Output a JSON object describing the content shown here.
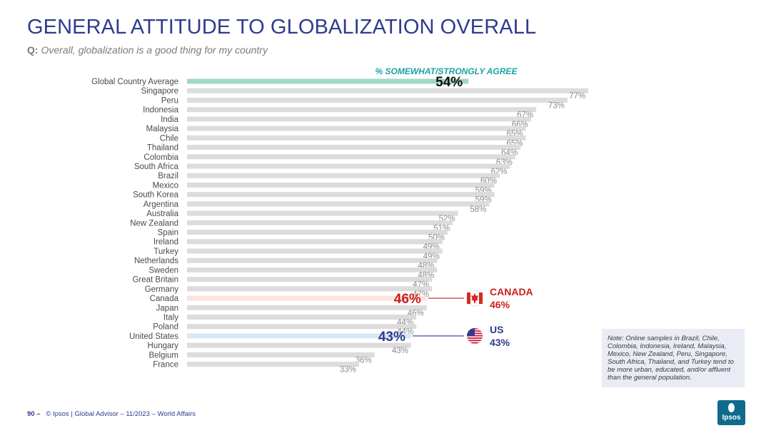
{
  "title": "GENERAL ATTITUDE TO GLOBALIZATION OVERALL",
  "question": {
    "prefix": "Q:",
    "text": "Overall, globalization is a good thing for my country"
  },
  "chart_data": {
    "type": "bar",
    "orientation": "horizontal",
    "series_label": "% SOMEWHAT/STRONGLY AGREE",
    "xlim": [
      0,
      100
    ],
    "unit": "%",
    "categories": [
      "Global Country Average",
      "Singapore",
      "Peru",
      "Indonesia",
      "India",
      "Malaysia",
      "Chile",
      "Thailand",
      "Colombia",
      "South Africa",
      "Brazil",
      "Mexico",
      "South Korea",
      "Argentina",
      "Australia",
      "New Zealand",
      "Spain",
      "Ireland",
      "Turkey",
      "Netherlands",
      "Sweden",
      "Great Britain",
      "Germany",
      "Canada",
      "Japan",
      "Italy",
      "Poland",
      "United States",
      "Hungary",
      "Belgium",
      "France"
    ],
    "values": [
      54,
      77,
      73,
      67,
      66,
      65,
      65,
      64,
      63,
      62,
      60,
      59,
      59,
      58,
      52,
      51,
      50,
      49,
      49,
      48,
      48,
      47,
      47,
      46,
      46,
      44,
      44,
      43,
      43,
      36,
      33
    ],
    "value_labels": [
      "54%",
      "77%",
      "73%",
      "67%",
      "66%",
      "65%",
      "65%",
      "64%",
      "63%",
      "62%",
      "60%",
      "59%",
      "59%",
      "58%",
      "52%",
      "51%",
      "50%",
      "49%",
      "49%",
      "48%",
      "48%",
      "47%",
      "47%",
      "46%",
      "46%",
      "44%",
      "44%",
      "43%",
      "43%",
      "36%",
      "33%"
    ],
    "highlights": [
      {
        "category": "Global Country Average",
        "color": "#9fd9c6",
        "label_color": "#111111",
        "label_style": "large"
      },
      {
        "category": "Canada",
        "color": "#fbe3df",
        "label_color": "#cc1f1f",
        "label_style": "large"
      },
      {
        "category": "United States",
        "color": "#d9e6f7",
        "label_color": "#2e3b8f",
        "label_style": "large"
      }
    ],
    "default_bar_color": "#dcdcdc",
    "callouts": [
      {
        "category": "Canada",
        "name": "CANADA",
        "value": "46%",
        "color": "#cc1f1f",
        "flag": "canada-flag-icon"
      },
      {
        "category": "United States",
        "name": "US",
        "value": "43%",
        "color": "#2e3b8f",
        "flag": "us-flag-icon"
      }
    ]
  },
  "note": "Note: Online samples in Brazil, Chile, Colombia, Indonesia, Ireland, Malaysia, Mexico, New Zealand, Peru, Singapore, South Africa, Thailand, and Turkey tend to be more urban, educated, and/or affluent than the general population.",
  "footer": {
    "page_number": "90 –",
    "source": "© Ipsos | Global Advisor – 11/2023 – World Affairs"
  },
  "logo": {
    "text": "Ipsos",
    "color": "#0f6b8c"
  }
}
